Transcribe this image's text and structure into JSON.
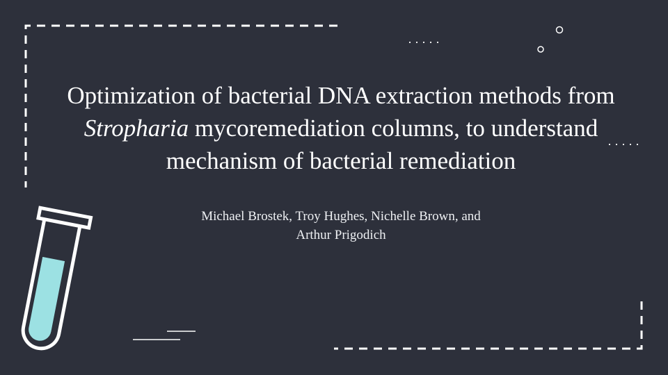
{
  "slide": {
    "title": {
      "line1": "Optimization of bacterial DNA extraction methods from",
      "genus": "Stropharia",
      "line2_rest": " mycoremediation columns, to understand",
      "line3": "mechanism of bacterial remediation"
    },
    "authors": {
      "line1": "Michael Brostek, Troy Hughes, Nichelle Brown, and",
      "line2": "Arthur Prigodich"
    }
  },
  "colors": {
    "background": "#2d303b",
    "text": "#ffffff",
    "tube_liquid": "#9ce1e3"
  },
  "icons": {
    "test_tube": "test-tube-icon"
  }
}
